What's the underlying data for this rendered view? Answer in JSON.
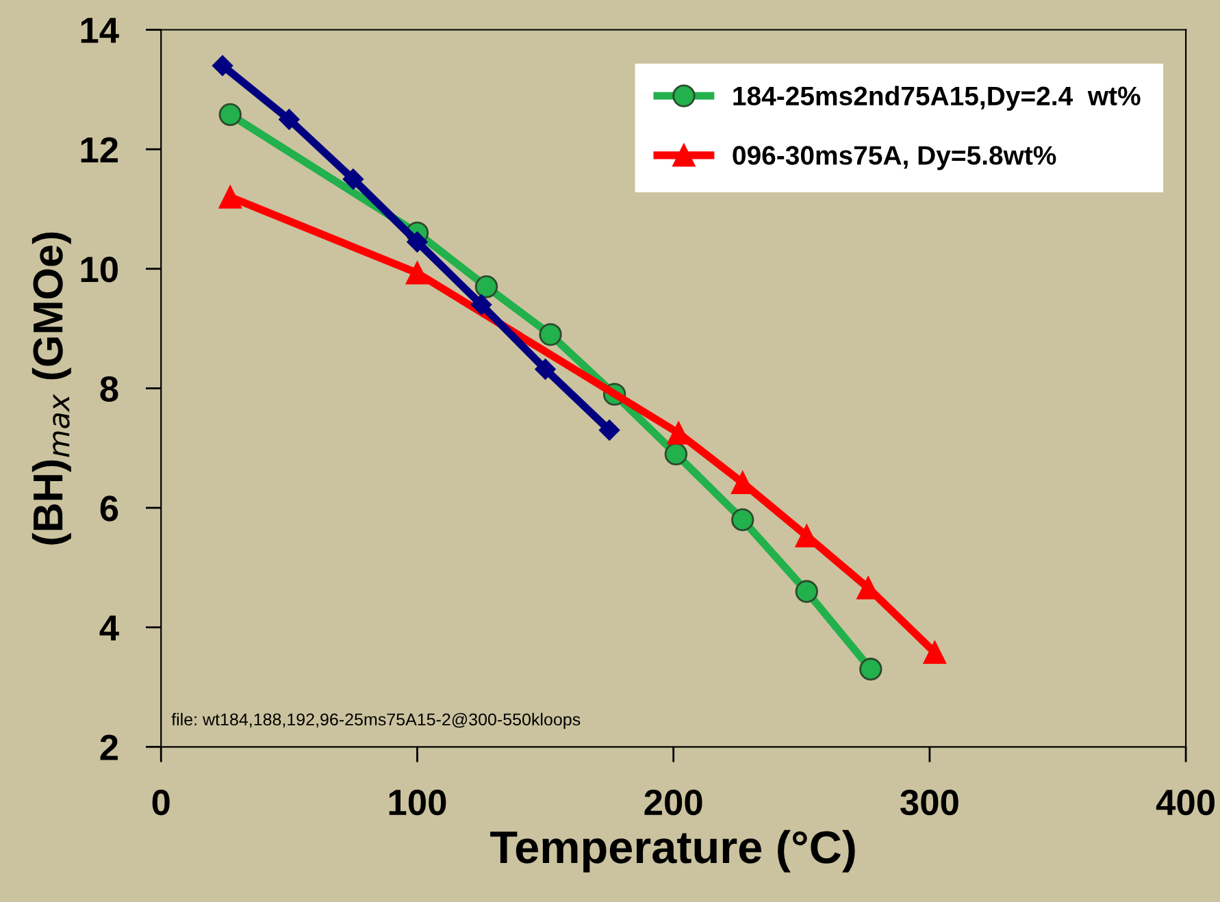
{
  "chart_data": {
    "type": "line",
    "xlabel": "Temperature (°C)",
    "ylabel": "(BH)$_{max}$ (GMOe)",
    "xlim": [
      0,
      400
    ],
    "xticks": [
      0,
      100,
      200,
      300,
      400
    ],
    "ylim": [
      2,
      14
    ],
    "yticks": [
      2,
      4,
      6,
      8,
      10,
      12,
      14
    ],
    "grid": false,
    "legend": "top right",
    "line_style": "solid",
    "series": [
      {
        "name": "184-25ms2nd75A15,Dy=2.4  wt%",
        "color": "#22b14c",
        "marker": "circle",
        "x": [
          27,
          100,
          127,
          152,
          177,
          201,
          227,
          252,
          277
        ],
        "values": [
          12.58,
          10.6,
          9.7,
          8.9,
          7.9,
          6.9,
          5.8,
          4.6,
          3.3
        ]
      },
      {
        "name": "096-30ms75A, Dy=5.8wt%",
        "color": "#ff0000",
        "marker": "triangle",
        "x": [
          27,
          100,
          202,
          227,
          252,
          276,
          302
        ],
        "values": [
          11.2,
          9.93,
          7.25,
          6.42,
          5.53,
          4.66,
          3.58
        ]
      },
      {
        "color": "#000080",
        "marker": "diamond",
        "x": [
          24,
          50,
          75,
          100,
          125,
          150,
          175
        ],
        "values": [
          13.4,
          12.5,
          11.5,
          10.45,
          9.4,
          8.32,
          7.3
        ]
      }
    ],
    "annotations": [
      "file: wt184,188,192,96-25ms75A15-2@300-550kloops"
    ]
  }
}
